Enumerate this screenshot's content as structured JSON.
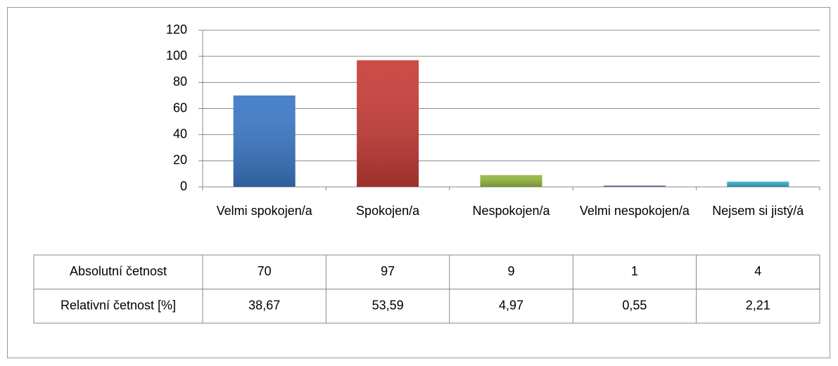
{
  "chart_data": {
    "type": "bar",
    "categories": [
      "Velmi spokojen/a",
      "Spokojen/a",
      "Nespokojen/a",
      "Velmi nespokojen/a",
      "Nejsem si jistý/á"
    ],
    "values": [
      70,
      97,
      9,
      1,
      4
    ],
    "colors": [
      "#3b78c6",
      "#c83c37",
      "#93b83f",
      "#7b5fa2",
      "#33aacb"
    ],
    "ylim": [
      0,
      120
    ],
    "yticks": [
      0,
      20,
      40,
      60,
      80,
      100,
      120
    ],
    "grid": true
  },
  "table": {
    "row_labels": [
      "Absolutní četnost",
      "Relativní četnost [%]"
    ],
    "relative": [
      "38,67",
      "53,59",
      "4,97",
      "0,55",
      "2,21"
    ]
  }
}
